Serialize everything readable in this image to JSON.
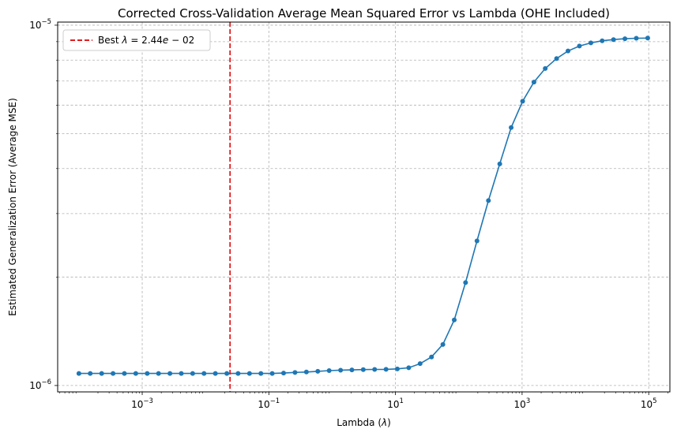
{
  "chart_data": {
    "type": "line",
    "title": "Corrected Cross-Validation Average Mean Squared Error vs Lambda (OHE Included)",
    "xlabel": "Lambda (λ)",
    "ylabel": "Estimated Generalization Error (Average MSE)",
    "xscale": "log",
    "yscale": "log",
    "xlim": [
      4.62e-05,
      216000
    ],
    "ylim": [
      9.6e-07,
      1.02e-05
    ],
    "grid": true,
    "legend_position": "upper left",
    "x_ticks": [
      {
        "value": 0.001,
        "base": "10",
        "exp": "−3"
      },
      {
        "value": 0.1,
        "base": "10",
        "exp": "−1"
      },
      {
        "value": 10,
        "base": "10",
        "exp": "1"
      },
      {
        "value": 1000,
        "base": "10",
        "exp": "3"
      },
      {
        "value": 100000,
        "base": "10",
        "exp": "5"
      }
    ],
    "y_ticks": [
      {
        "value": 1e-06,
        "base": "10",
        "exp": "−6"
      },
      {
        "value": 1e-05,
        "base": "10",
        "exp": "−5"
      }
    ],
    "y_minor_ticks": [
      2e-06,
      3e-06,
      4e-06,
      5e-06,
      6e-06,
      7e-06,
      8e-06,
      9e-06
    ],
    "series": [
      {
        "color": "#1f77b4",
        "marker": "circle",
        "x": [
          0.0001,
          0.000151,
          0.000229,
          0.000346,
          0.000523,
          0.000791,
          0.0012,
          0.00181,
          0.00274,
          0.00414,
          0.00626,
          0.00947,
          0.0143,
          0.0217,
          0.0327,
          0.0495,
          0.0749,
          0.113,
          0.171,
          0.259,
          0.392,
          0.593,
          0.897,
          1.36,
          2.05,
          3.1,
          4.69,
          7.1,
          10.7,
          16.2,
          24.5,
          37.1,
          56.1,
          84.8,
          128,
          194,
          294,
          444,
          672,
          1020,
          1540,
          2320,
          3510,
          5310,
          8040,
          12200,
          18400,
          27800,
          42100,
          63700,
          96400
        ],
        "y": [
          1.08e-06,
          1.08e-06,
          1.08e-06,
          1.08e-06,
          1.08e-06,
          1.08e-06,
          1.08e-06,
          1.08e-06,
          1.08e-06,
          1.08e-06,
          1.08e-06,
          1.08e-06,
          1.08e-06,
          1.08e-06,
          1.08e-06,
          1.08e-06,
          1.08e-06,
          1.08e-06,
          1.083e-06,
          1.087e-06,
          1.09e-06,
          1.095e-06,
          1.1e-06,
          1.103e-06,
          1.105e-06,
          1.107e-06,
          1.108e-06,
          1.109e-06,
          1.112e-06,
          1.12e-06,
          1.15e-06,
          1.2e-06,
          1.3e-06,
          1.52e-06,
          1.93e-06,
          2.52e-06,
          3.26e-06,
          4.12e-06,
          5.2e-06,
          6.15e-06,
          6.95e-06,
          7.58e-06,
          8.08e-06,
          8.48e-06,
          8.75e-06,
          8.93e-06,
          9.05e-06,
          9.12e-06,
          9.17e-06,
          9.2e-06,
          9.21e-06
        ]
      },
      {
        "name": "Best λ = 2.44e − 02",
        "color": "#e41a1c",
        "style": "dashed",
        "vertical_line_x": 0.0244
      }
    ]
  }
}
